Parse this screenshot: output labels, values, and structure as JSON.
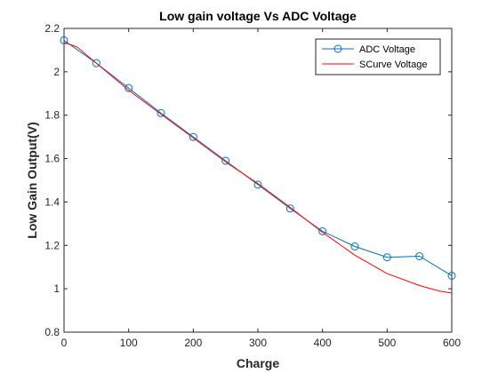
{
  "chart_data": {
    "type": "line",
    "title": "Low gain voltage Vs ADC Voltage",
    "xlabel": "Charge",
    "ylabel": "Low Gain Output(V)",
    "xlim": [
      0,
      600
    ],
    "ylim": [
      0.8,
      2.2
    ],
    "xticks": [
      "0",
      "100",
      "200",
      "300",
      "400",
      "500",
      "600"
    ],
    "yticks": [
      "0.8",
      "1",
      "1.2",
      "1.4",
      "1.6",
      "1.8",
      "2",
      "2.2"
    ],
    "grid": false,
    "legend_position": "top-right",
    "series": [
      {
        "name": "ADC Voltage",
        "color": "#0072BD",
        "marker": "circle",
        "x": [
          0,
          50,
          100,
          150,
          200,
          250,
          300,
          350,
          400,
          450,
          500,
          550,
          600
        ],
        "y": [
          2.145,
          2.04,
          1.925,
          1.81,
          1.7,
          1.59,
          1.48,
          1.37,
          1.265,
          1.195,
          1.145,
          1.15,
          1.06
        ]
      },
      {
        "name": "SCurve Voltage",
        "color": "#FF0000",
        "marker": "none",
        "x": [
          0,
          20,
          50,
          100,
          150,
          200,
          250,
          300,
          350,
          400,
          450,
          500,
          550,
          580,
          600
        ],
        "y": [
          2.135,
          2.115,
          2.04,
          1.915,
          1.805,
          1.695,
          1.585,
          1.485,
          1.375,
          1.26,
          1.155,
          1.07,
          1.015,
          0.99,
          0.98
        ]
      }
    ]
  }
}
